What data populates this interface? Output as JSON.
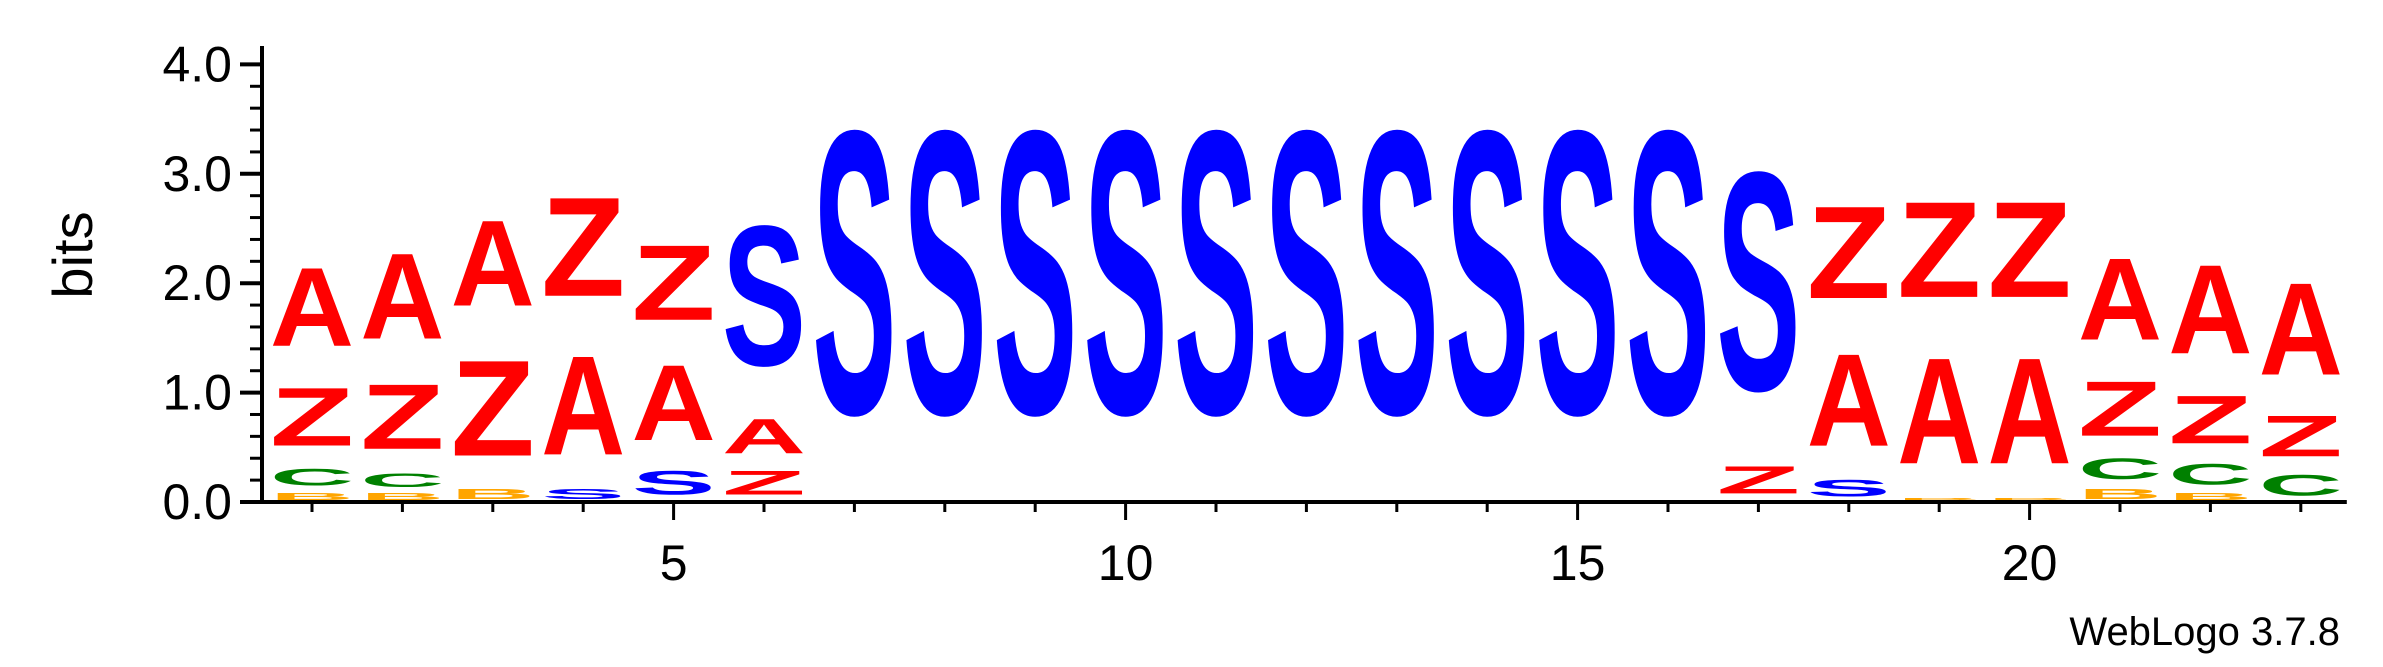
{
  "chart_data": {
    "type": "sequence-logo",
    "ylabel": "bits",
    "ylim": [
      0,
      4.15
    ],
    "y_ticks": [
      "0.0",
      "1.0",
      "2.0",
      "3.0",
      "4.0"
    ],
    "x_ticks": [
      "5",
      "10",
      "15",
      "20"
    ],
    "x_tick_positions": [
      5,
      10,
      15,
      20
    ],
    "credit": "WebLogo 3.7.8",
    "colors": {
      "A": "#ff0000",
      "Z": "#ff0000",
      "S": "#0000ff",
      "C": "#008000",
      "B": "#ffa500"
    },
    "positions": [
      {
        "pos": 1,
        "stack": [
          {
            "l": "B",
            "h": 0.1
          },
          {
            "l": "C",
            "h": 0.25
          },
          {
            "l": "Z",
            "h": 0.85
          },
          {
            "l": "A",
            "h": 1.15
          }
        ]
      },
      {
        "pos": 2,
        "stack": [
          {
            "l": "B",
            "h": 0.1
          },
          {
            "l": "C",
            "h": 0.2
          },
          {
            "l": "Z",
            "h": 0.95
          },
          {
            "l": "A",
            "h": 1.25
          }
        ]
      },
      {
        "pos": 3,
        "stack": [
          {
            "l": "B",
            "h": 0.15
          },
          {
            "l": "Z",
            "h": 1.4
          },
          {
            "l": "A",
            "h": 1.25
          }
        ]
      },
      {
        "pos": 4,
        "stack": [
          {
            "l": "S",
            "h": 0.15
          },
          {
            "l": "A",
            "h": 1.45
          },
          {
            "l": "Z",
            "h": 1.45
          }
        ]
      },
      {
        "pos": 5,
        "stack": [
          {
            "l": "S",
            "h": 0.35
          },
          {
            "l": "A",
            "h": 1.1
          },
          {
            "l": "Z",
            "h": 1.1
          }
        ]
      },
      {
        "pos": 6,
        "stack": [
          {
            "l": "Z",
            "h": 0.35
          },
          {
            "l": "A",
            "h": 0.5
          },
          {
            "l": "S",
            "h": 2.05
          }
        ]
      },
      {
        "pos": 7,
        "stack": [
          {
            "l": "S",
            "h": 4.15
          }
        ]
      },
      {
        "pos": 8,
        "stack": [
          {
            "l": "S",
            "h": 4.15
          }
        ]
      },
      {
        "pos": 9,
        "stack": [
          {
            "l": "S",
            "h": 4.15
          }
        ]
      },
      {
        "pos": 10,
        "stack": [
          {
            "l": "S",
            "h": 4.15
          }
        ]
      },
      {
        "pos": 11,
        "stack": [
          {
            "l": "S",
            "h": 4.15
          }
        ]
      },
      {
        "pos": 12,
        "stack": [
          {
            "l": "S",
            "h": 4.15
          }
        ]
      },
      {
        "pos": 13,
        "stack": [
          {
            "l": "S",
            "h": 4.15
          }
        ]
      },
      {
        "pos": 14,
        "stack": [
          {
            "l": "S",
            "h": 4.15
          }
        ]
      },
      {
        "pos": 15,
        "stack": [
          {
            "l": "S",
            "h": 4.15
          }
        ]
      },
      {
        "pos": 16,
        "stack": [
          {
            "l": "S",
            "h": 4.15
          }
        ]
      },
      {
        "pos": 17,
        "stack": [
          {
            "l": "Z",
            "h": 0.4
          },
          {
            "l": "S",
            "h": 3.2
          }
        ]
      },
      {
        "pos": 18,
        "stack": [
          {
            "l": "S",
            "h": 0.25
          },
          {
            "l": "A",
            "h": 1.35
          },
          {
            "l": "Z",
            "h": 1.35
          }
        ]
      },
      {
        "pos": 19,
        "stack": [
          {
            "l": "B",
            "h": 0.05
          },
          {
            "l": "A",
            "h": 1.55
          },
          {
            "l": "Z",
            "h": 1.4
          }
        ]
      },
      {
        "pos": 20,
        "stack": [
          {
            "l": "B",
            "h": 0.05
          },
          {
            "l": "A",
            "h": 1.55
          },
          {
            "l": "Z",
            "h": 1.4
          }
        ]
      },
      {
        "pos": 21,
        "stack": [
          {
            "l": "B",
            "h": 0.15
          },
          {
            "l": "C",
            "h": 0.3
          },
          {
            "l": "Z",
            "h": 0.8
          },
          {
            "l": "A",
            "h": 1.2
          }
        ]
      },
      {
        "pos": 22,
        "stack": [
          {
            "l": "B",
            "h": 0.1
          },
          {
            "l": "C",
            "h": 0.3
          },
          {
            "l": "Z",
            "h": 0.7
          },
          {
            "l": "A",
            "h": 1.3
          }
        ]
      },
      {
        "pos": 23,
        "stack": [
          {
            "l": "C",
            "h": 0.3
          },
          {
            "l": "Z",
            "h": 0.6
          },
          {
            "l": "A",
            "h": 1.35
          }
        ]
      }
    ]
  }
}
